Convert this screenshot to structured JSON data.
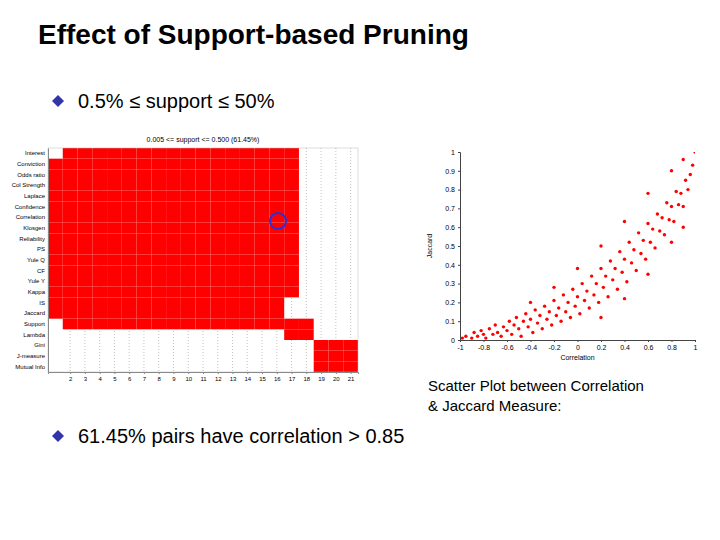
{
  "slide": {
    "title": "Effect of Support-based Pruning",
    "bullets": [
      "0.5% ≤ support ≤ 50%",
      "61.45% pairs have correlation > 0.85"
    ],
    "caption": [
      "Scatter Plot between Correlation",
      "& Jaccard Measure:"
    ]
  },
  "chart_data": [
    {
      "type": "heatmap",
      "title": "0.005 <= support <= 0.500 (61.45%)",
      "categories": [
        "Interest",
        "Conviction",
        "Odds ratio",
        "Col Strength",
        "Laplace",
        "Confidence",
        "Correlation",
        "Klosgen",
        "Reliability",
        "PS",
        "Yule Q",
        "CF",
        "Yule Y",
        "Kappa",
        "IS",
        "Jaccard",
        "Support",
        "Lambda",
        "Gini",
        "J-measure",
        "Mutual Info"
      ],
      "xlim": [
        0.5,
        21.5
      ],
      "xticks": [
        2,
        3,
        4,
        5,
        6,
        7,
        8,
        9,
        10,
        11,
        12,
        13,
        14,
        15,
        16,
        17,
        18,
        19,
        20,
        21
      ],
      "grid": true,
      "color": "#ff0000",
      "cells": [
        [
          0,
          1,
          1,
          1,
          1,
          1,
          1,
          1,
          1,
          1,
          1,
          1,
          1,
          1,
          1,
          1,
          1,
          0,
          0,
          0,
          0
        ],
        [
          1,
          1,
          1,
          1,
          1,
          1,
          1,
          1,
          1,
          1,
          1,
          1,
          1,
          1,
          1,
          1,
          1,
          0,
          0,
          0,
          0
        ],
        [
          1,
          1,
          1,
          1,
          1,
          1,
          1,
          1,
          1,
          1,
          1,
          1,
          1,
          1,
          1,
          1,
          1,
          0,
          0,
          0,
          0
        ],
        [
          1,
          1,
          1,
          1,
          1,
          1,
          1,
          1,
          1,
          1,
          1,
          1,
          1,
          1,
          1,
          1,
          1,
          0,
          0,
          0,
          0
        ],
        [
          1,
          1,
          1,
          1,
          1,
          1,
          1,
          1,
          1,
          1,
          1,
          1,
          1,
          1,
          1,
          1,
          1,
          0,
          0,
          0,
          0
        ],
        [
          1,
          1,
          1,
          1,
          1,
          1,
          1,
          1,
          1,
          1,
          1,
          1,
          1,
          1,
          1,
          1,
          1,
          0,
          0,
          0,
          0
        ],
        [
          1,
          1,
          1,
          1,
          1,
          1,
          1,
          1,
          1,
          1,
          1,
          1,
          1,
          1,
          1,
          1,
          1,
          0,
          0,
          0,
          0
        ],
        [
          1,
          1,
          1,
          1,
          1,
          1,
          1,
          1,
          1,
          1,
          1,
          1,
          1,
          1,
          1,
          1,
          1,
          0,
          0,
          0,
          0
        ],
        [
          1,
          1,
          1,
          1,
          1,
          1,
          1,
          1,
          1,
          1,
          1,
          1,
          1,
          1,
          1,
          1,
          1,
          0,
          0,
          0,
          0
        ],
        [
          1,
          1,
          1,
          1,
          1,
          1,
          1,
          1,
          1,
          1,
          1,
          1,
          1,
          1,
          1,
          1,
          1,
          0,
          0,
          0,
          0
        ],
        [
          1,
          1,
          1,
          1,
          1,
          1,
          1,
          1,
          1,
          1,
          1,
          1,
          1,
          1,
          1,
          1,
          1,
          0,
          0,
          0,
          0
        ],
        [
          1,
          1,
          1,
          1,
          1,
          1,
          1,
          1,
          1,
          1,
          1,
          1,
          1,
          1,
          1,
          1,
          1,
          0,
          0,
          0,
          0
        ],
        [
          1,
          1,
          1,
          1,
          1,
          1,
          1,
          1,
          1,
          1,
          1,
          1,
          1,
          1,
          1,
          1,
          1,
          0,
          0,
          0,
          0
        ],
        [
          1,
          1,
          1,
          1,
          1,
          1,
          1,
          1,
          1,
          1,
          1,
          1,
          1,
          1,
          1,
          1,
          1,
          0,
          0,
          0,
          0
        ],
        [
          1,
          1,
          1,
          1,
          1,
          1,
          1,
          1,
          1,
          1,
          1,
          1,
          1,
          1,
          1,
          1,
          0,
          0,
          0,
          0,
          0
        ],
        [
          1,
          1,
          1,
          1,
          1,
          1,
          1,
          1,
          1,
          1,
          1,
          1,
          1,
          1,
          1,
          1,
          0,
          0,
          0,
          0,
          0
        ],
        [
          0,
          1,
          1,
          1,
          1,
          1,
          1,
          1,
          1,
          1,
          1,
          1,
          1,
          1,
          1,
          1,
          1,
          1,
          0,
          0,
          0
        ],
        [
          0,
          0,
          0,
          0,
          0,
          0,
          0,
          0,
          0,
          0,
          0,
          0,
          0,
          0,
          0,
          0,
          1,
          1,
          0,
          0,
          0
        ],
        [
          0,
          0,
          0,
          0,
          0,
          0,
          0,
          0,
          0,
          0,
          0,
          0,
          0,
          0,
          0,
          0,
          0,
          0,
          1,
          1,
          1
        ],
        [
          0,
          0,
          0,
          0,
          0,
          0,
          0,
          0,
          0,
          0,
          0,
          0,
          0,
          0,
          0,
          0,
          0,
          0,
          1,
          1,
          1
        ],
        [
          0,
          0,
          0,
          0,
          0,
          0,
          0,
          0,
          0,
          0,
          0,
          0,
          0,
          0,
          0,
          0,
          0,
          0,
          1,
          1,
          1
        ]
      ]
    },
    {
      "type": "scatter",
      "x_label": "Correlation",
      "y_label": "Jaccard",
      "xlim": [
        -1,
        1
      ],
      "xticks": [
        -1,
        -0.8,
        -0.6,
        -0.4,
        -0.2,
        0,
        0.2,
        0.4,
        0.6,
        0.8,
        1
      ],
      "ylim": [
        0,
        1
      ],
      "yticks": [
        0,
        0.1,
        0.2,
        0.3,
        0.4,
        0.5,
        0.6,
        0.7,
        0.8,
        0.9,
        1
      ],
      "grid": false,
      "color": "#ff0000",
      "marker": "circle",
      "x": [
        -0.98,
        -0.95,
        -0.9,
        -0.88,
        -0.85,
        -0.82,
        -0.8,
        -0.78,
        -0.75,
        -0.72,
        -0.7,
        -0.68,
        -0.65,
        -0.63,
        -0.6,
        -0.58,
        -0.56,
        -0.54,
        -0.52,
        -0.5,
        -0.48,
        -0.46,
        -0.44,
        -0.42,
        -0.4,
        -0.38,
        -0.36,
        -0.34,
        -0.32,
        -0.3,
        -0.28,
        -0.26,
        -0.24,
        -0.22,
        -0.2,
        -0.18,
        -0.16,
        -0.14,
        -0.12,
        -0.1,
        -0.08,
        -0.06,
        -0.04,
        -0.02,
        0,
        0.02,
        0.04,
        0.06,
        0.08,
        0.1,
        0.12,
        0.14,
        0.16,
        0.18,
        0.2,
        0.22,
        0.24,
        0.26,
        0.28,
        0.3,
        0.32,
        0.34,
        0.36,
        0.38,
        0.4,
        0.42,
        0.44,
        0.46,
        0.48,
        0.5,
        0.52,
        0.54,
        0.56,
        0.58,
        0.6,
        0.62,
        0.64,
        0.66,
        0.68,
        0.7,
        0.72,
        0.74,
        0.76,
        0.78,
        0.8,
        0.82,
        0.84,
        0.86,
        0.88,
        0.9,
        0.92,
        0.94,
        0.96,
        0.98,
        1,
        -0.4,
        -0.2,
        0,
        0.2,
        0.4,
        0.6,
        0.8,
        0.9,
        0.2,
        0.4,
        0.6,
        0.8,
        0.9
      ],
      "values": [
        0.01,
        0.02,
        0.01,
        0.04,
        0.02,
        0.05,
        0.03,
        0.01,
        0.06,
        0.03,
        0.08,
        0.04,
        0.02,
        0.07,
        0.05,
        0.1,
        0.03,
        0.08,
        0.12,
        0.06,
        0.02,
        0.1,
        0.14,
        0.07,
        0.11,
        0.04,
        0.16,
        0.09,
        0.13,
        0.06,
        0.18,
        0.11,
        0.15,
        0.08,
        0.21,
        0.13,
        0.17,
        0.1,
        0.24,
        0.15,
        0.2,
        0.12,
        0.27,
        0.18,
        0.23,
        0.14,
        0.3,
        0.21,
        0.26,
        0.17,
        0.34,
        0.24,
        0.3,
        0.2,
        0.38,
        0.28,
        0.34,
        0.23,
        0.42,
        0.32,
        0.38,
        0.27,
        0.47,
        0.36,
        0.43,
        0.31,
        0.52,
        0.41,
        0.48,
        0.37,
        0.57,
        0.46,
        0.53,
        0.43,
        0.62,
        0.52,
        0.59,
        0.49,
        0.67,
        0.58,
        0.65,
        0.56,
        0.73,
        0.64,
        0.71,
        0.63,
        0.79,
        0.72,
        0.78,
        0.71,
        0.85,
        0.8,
        0.88,
        0.93,
        1,
        0.2,
        0.28,
        0.38,
        0.5,
        0.63,
        0.78,
        0.9,
        0.96,
        0.12,
        0.22,
        0.35,
        0.52,
        0.6
      ]
    }
  ]
}
